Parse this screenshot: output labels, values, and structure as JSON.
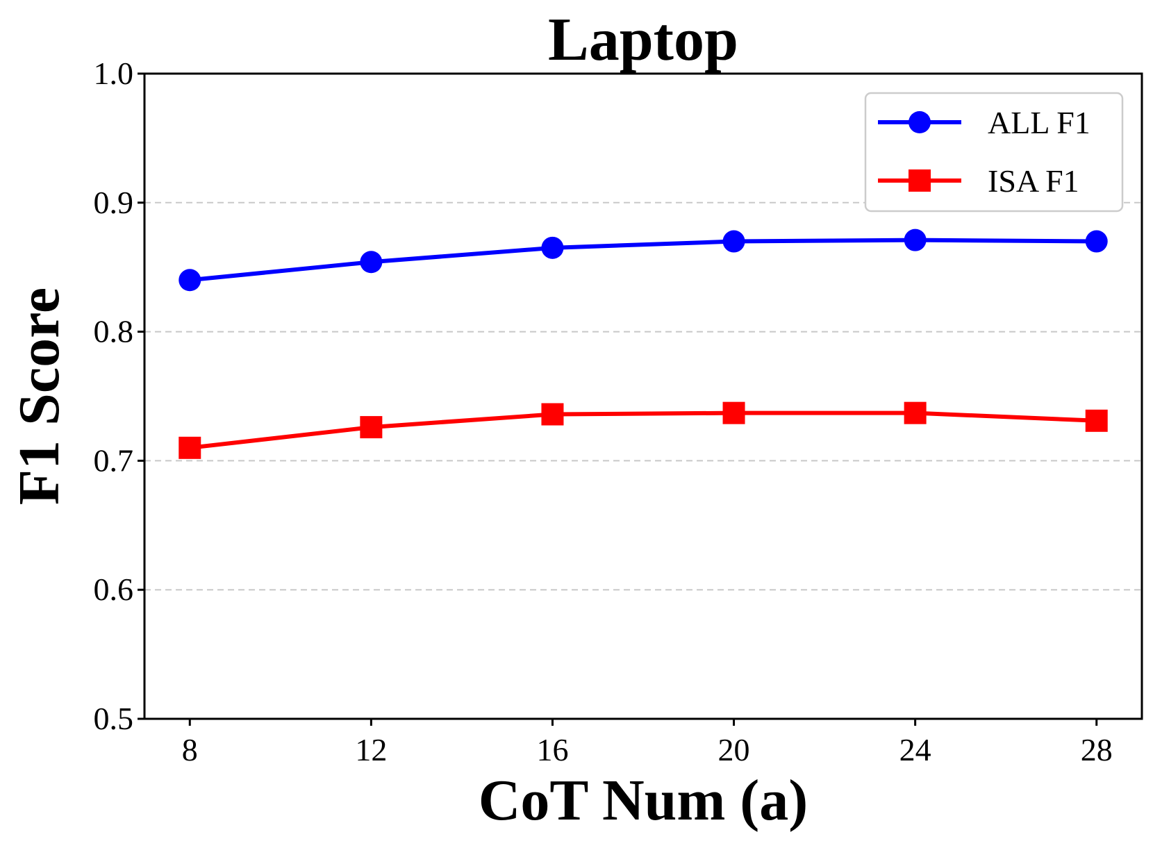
{
  "chart_data": {
    "type": "line",
    "title": "Laptop",
    "xlabel": "CoT Num (a)",
    "ylabel": "F1 Score",
    "x": [
      8,
      12,
      16,
      20,
      24,
      28
    ],
    "xticks": [
      "8",
      "12",
      "16",
      "20",
      "24",
      "28"
    ],
    "xlim": [
      7,
      29
    ],
    "ylim": [
      0.5,
      1.0
    ],
    "yticks": [
      "0.5",
      "0.6",
      "0.7",
      "0.8",
      "0.9",
      "1.0"
    ],
    "grid": "y-dashed",
    "legend_position": "top-right",
    "series": [
      {
        "name": "ALL F1",
        "color": "#0000ff",
        "marker": "circle",
        "values": [
          0.84,
          0.854,
          0.865,
          0.87,
          0.871,
          0.87
        ]
      },
      {
        "name": "ISA F1",
        "color": "#ff0000",
        "marker": "square",
        "values": [
          0.71,
          0.726,
          0.736,
          0.737,
          0.737,
          0.731
        ]
      }
    ]
  }
}
